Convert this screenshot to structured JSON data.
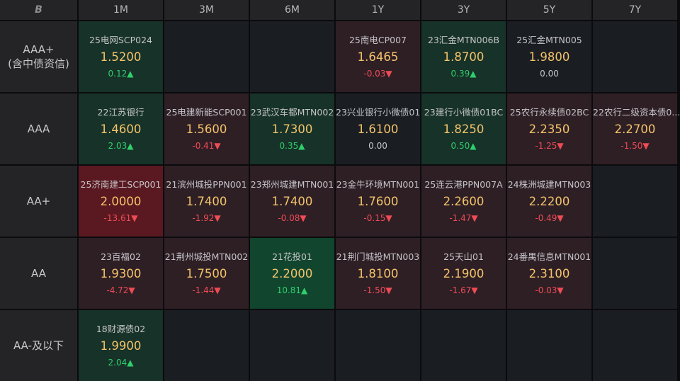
{
  "header": {
    "logo": "B",
    "tenors": [
      "1M",
      "3M",
      "6M",
      "1Y",
      "3Y",
      "5Y",
      "7Y"
    ]
  },
  "rows": [
    {
      "label_lines": [
        "AAA+",
        "(含中债资信)"
      ],
      "cells": [
        {
          "name": "25电网SCP024",
          "yield": "1.5200",
          "change": "0.12▲",
          "dir": "up",
          "tone": "green"
        },
        null,
        null,
        {
          "name": "25南电CP007",
          "yield": "1.6465",
          "change": "-0.03▼",
          "dir": "down",
          "tone": "red"
        },
        {
          "name": "23汇金MTN006B",
          "yield": "1.8700",
          "change": "0.39▲",
          "dir": "up",
          "tone": "green"
        },
        {
          "name": "25汇金MTN005",
          "yield": "1.9800",
          "change": "0.00",
          "dir": "flat",
          "tone": "neutral"
        },
        null
      ]
    },
    {
      "label_lines": [
        "AAA"
      ],
      "cells": [
        {
          "name": "22江苏银行",
          "yield": "1.4600",
          "change": "2.03▲",
          "dir": "up",
          "tone": "green"
        },
        {
          "name": "25电建新能SCP001",
          "yield": "1.5600",
          "change": "-0.41▼",
          "dir": "down",
          "tone": "red"
        },
        {
          "name": "23武汉车都MTN002",
          "yield": "1.7300",
          "change": "0.35▲",
          "dir": "up",
          "tone": "green"
        },
        {
          "name": "23兴业银行小微债01",
          "yield": "1.6100",
          "change": "0.00",
          "dir": "flat",
          "tone": "neutral"
        },
        {
          "name": "23建行小微债01BC",
          "yield": "1.8250",
          "change": "0.50▲",
          "dir": "up",
          "tone": "green"
        },
        {
          "name": "25农行永续债02BC",
          "yield": "2.2350",
          "change": "-1.25▼",
          "dir": "down",
          "tone": "red"
        },
        {
          "name": "22农行二级资本债0...",
          "yield": "2.2700",
          "change": "-1.50▼",
          "dir": "down",
          "tone": "red"
        }
      ]
    },
    {
      "label_lines": [
        "AA+"
      ],
      "cells": [
        {
          "name": "25济南建工SCP001",
          "yield": "2.0000",
          "change": "-13.61▼",
          "dir": "down",
          "tone": "strong-red"
        },
        {
          "name": "21滨州城投PPN001",
          "yield": "1.7400",
          "change": "-1.92▼",
          "dir": "down",
          "tone": "red"
        },
        {
          "name": "23郑州城建MTN001",
          "yield": "1.7400",
          "change": "-0.08▼",
          "dir": "down",
          "tone": "red"
        },
        {
          "name": "23金牛环境MTN001",
          "yield": "1.7600",
          "change": "-0.15▼",
          "dir": "down",
          "tone": "red"
        },
        {
          "name": "25连云港PPN007A",
          "yield": "2.2600",
          "change": "-1.47▼",
          "dir": "down",
          "tone": "red"
        },
        {
          "name": "24株洲城建MTN003",
          "yield": "2.2200",
          "change": "-0.49▼",
          "dir": "down",
          "tone": "red"
        },
        null
      ]
    },
    {
      "label_lines": [
        "AA"
      ],
      "cells": [
        {
          "name": "23百福02",
          "yield": "1.9300",
          "change": "-4.72▼",
          "dir": "down",
          "tone": "red"
        },
        {
          "name": "21荆州城投MTN002",
          "yield": "1.7500",
          "change": "-1.44▼",
          "dir": "down",
          "tone": "red"
        },
        {
          "name": "21花投01",
          "yield": "2.2000",
          "change": "10.81▲",
          "dir": "up",
          "tone": "strong-green"
        },
        {
          "name": "21荆门城投MTN003",
          "yield": "1.8100",
          "change": "-1.50▼",
          "dir": "down",
          "tone": "red"
        },
        {
          "name": "25天山01",
          "yield": "2.1900",
          "change": "-1.67▼",
          "dir": "down",
          "tone": "red"
        },
        {
          "name": "24番禺信息MTN001",
          "yield": "2.3100",
          "change": "-0.03▼",
          "dir": "down",
          "tone": "red"
        },
        null
      ]
    },
    {
      "label_lines": [
        "AA-及以下"
      ],
      "cells": [
        {
          "name": "18财源债02",
          "yield": "1.9900",
          "change": "2.04▲",
          "dir": "up",
          "tone": "green"
        },
        null,
        null,
        null,
        null,
        null,
        null
      ]
    }
  ]
}
